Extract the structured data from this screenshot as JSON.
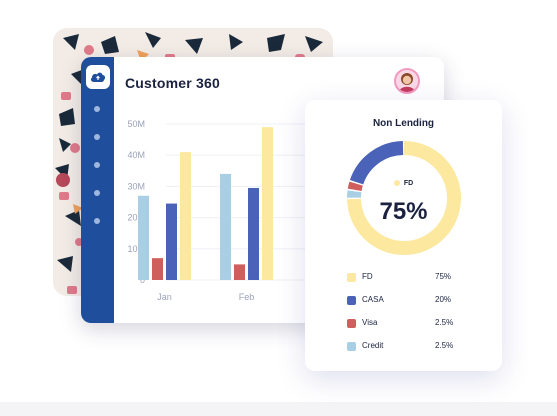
{
  "app": {
    "title": "Customer 360"
  },
  "colors": {
    "sidebar": "#1f4e9c",
    "fd": "#fde8a0",
    "casa": "#4a63b8",
    "visa": "#cf5f5d",
    "credit": "#a8cfe4"
  },
  "chart_data": {
    "type": "bar",
    "categories": [
      "Jan",
      "Feb"
    ],
    "y_ticks": [
      "0",
      "10M",
      "20M",
      "30M",
      "40M",
      "50M"
    ],
    "ylim": [
      0,
      50
    ],
    "series": [
      {
        "color": "#a8cfe4",
        "values": [
          27,
          34
        ]
      },
      {
        "color": "#cf5f5d",
        "values": [
          7,
          5
        ]
      },
      {
        "color": "#4a63b8",
        "values": [
          24.5,
          29.5
        ]
      },
      {
        "color": "#fde8a0",
        "values": [
          41,
          49
        ]
      }
    ]
  },
  "card": {
    "title": "Non Lending",
    "center_label": "FD",
    "center_value": "75%",
    "legend": [
      {
        "label": "FD",
        "value": "75%",
        "fraction": 0.75,
        "color": "#fde8a0"
      },
      {
        "label": "CASA",
        "value": "20%",
        "fraction": 0.2,
        "color": "#4a63b8"
      },
      {
        "label": "Visa",
        "value": "2.5%",
        "fraction": 0.025,
        "color": "#cf5f5d"
      },
      {
        "label": "Credit",
        "value": "2.5%",
        "fraction": 0.025,
        "color": "#a8cfe4"
      }
    ]
  },
  "icons": {
    "logo": "cloud-icon",
    "avatar": "user-avatar"
  }
}
